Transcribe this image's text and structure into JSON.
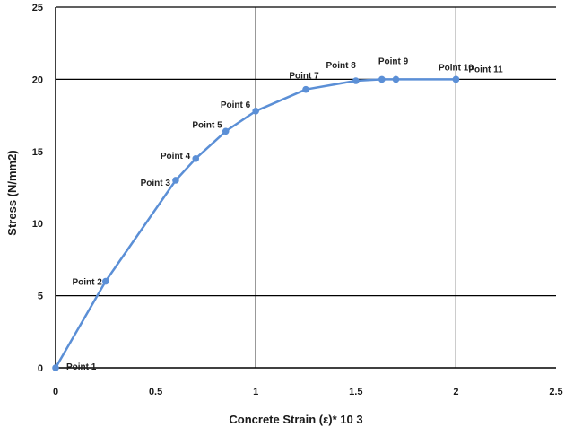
{
  "chart_data": {
    "type": "line",
    "xlabel": "Concrete Strain (ε)* 10 3",
    "ylabel": "Stress  (N/mm2)",
    "xlim": [
      0,
      2.5
    ],
    "ylim": [
      0,
      25
    ],
    "x_ticks": [
      "0",
      "0.5",
      "1",
      "1.5",
      "2",
      "2.5"
    ],
    "y_ticks": [
      "0",
      "5",
      "10",
      "15",
      "20",
      "25"
    ],
    "grid": "major gridlines at x = 1, 2 and y = 5, 20, 25",
    "series": [
      {
        "color": "#5b8fd6",
        "points": [
          {
            "x": 0,
            "y": 0,
            "label": "Point 1"
          },
          {
            "x": 0.25,
            "y": 6,
            "label": "Point 2"
          },
          {
            "x": 0.6,
            "y": 13,
            "label": "Point 3"
          },
          {
            "x": 0.7,
            "y": 14.5,
            "label": "Point 4"
          },
          {
            "x": 0.85,
            "y": 16.4,
            "label": "Point 5"
          },
          {
            "x": 1.0,
            "y": 17.8,
            "label": "Point 6"
          },
          {
            "x": 1.25,
            "y": 19.3,
            "label": "Point 7"
          },
          {
            "x": 1.5,
            "y": 19.9,
            "label": "Point 8"
          },
          {
            "x": 1.63,
            "y": 20,
            "label": "Point 9"
          },
          {
            "x": 1.7,
            "y": 20,
            "label": ""
          },
          {
            "x": 2.0,
            "y": 20,
            "label": "Point 10"
          },
          {
            "x": 2.0,
            "y": 20,
            "label": "Point 11"
          }
        ]
      }
    ]
  }
}
